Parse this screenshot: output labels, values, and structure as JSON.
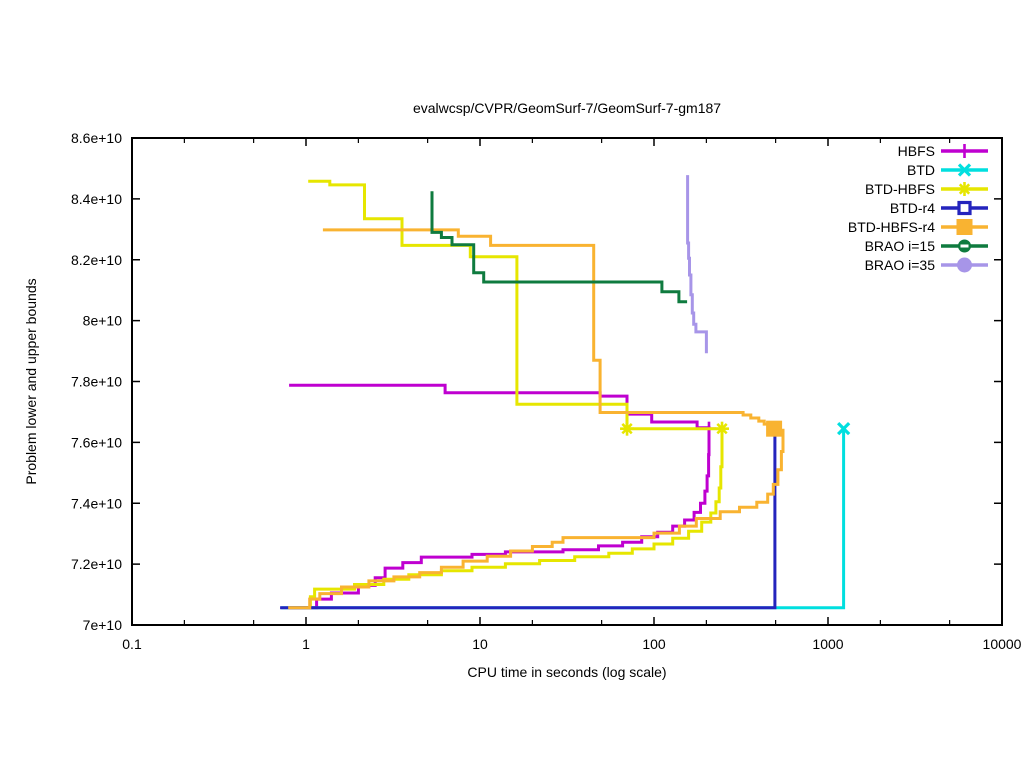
{
  "chart_data": {
    "type": "line",
    "title": "evalwcsp/CVPR/GeomSurf-7/GeomSurf-7-gm187",
    "xlabel": "CPU time in seconds (log scale)",
    "ylabel": "Problem lower and upper bounds",
    "x_scale": "log",
    "x_range": [
      0.1,
      10000
    ],
    "y_range": [
      7.0,
      8.6
    ],
    "value_unit": "1e+10",
    "grid": false,
    "x_tick_values": [
      0.1,
      1,
      10,
      100,
      1000,
      10000
    ],
    "x_tick_labels": [
      "0.1",
      "1",
      "10",
      "100",
      "1000",
      "10000"
    ],
    "x_minor_tick_values": [
      0.2,
      0.5,
      2,
      5,
      20,
      50,
      200,
      500,
      2000,
      5000
    ],
    "y_tick_values": [
      7.0,
      7.2,
      7.4,
      7.6,
      7.8,
      8.0,
      8.2,
      8.4,
      8.6
    ],
    "y_tick_labels": [
      "7e+10",
      "7.2e+10",
      "7.4e+10",
      "7.6e+10",
      "7.8e+10",
      "8e+10",
      "8.2e+10",
      "8.4e+10",
      "8.6e+10"
    ],
    "legend": {
      "position": "top-right-inside"
    },
    "series": [
      {
        "name": "HBFS",
        "color": "#bf00d0",
        "marker": "plus",
        "upper": [
          [
            0.8,
            7.788
          ],
          [
            6.3,
            7.788
          ],
          [
            6.3,
            7.763
          ],
          [
            49,
            7.763
          ],
          [
            49,
            7.752
          ],
          [
            70,
            7.752
          ],
          [
            70,
            7.693
          ],
          [
            97,
            7.693
          ],
          [
            97,
            7.667
          ],
          [
            177,
            7.667
          ],
          [
            177,
            7.648
          ],
          [
            207,
            7.648
          ],
          [
            207,
            7.645
          ]
        ],
        "lower": [
          [
            0.8,
            7.057
          ],
          [
            1.15,
            7.057
          ],
          [
            1.15,
            7.085
          ],
          [
            1.4,
            7.085
          ],
          [
            1.4,
            7.105
          ],
          [
            2.0,
            7.105
          ],
          [
            2.0,
            7.13
          ],
          [
            2.5,
            7.13
          ],
          [
            2.5,
            7.155
          ],
          [
            2.85,
            7.155
          ],
          [
            2.85,
            7.187
          ],
          [
            3.6,
            7.187
          ],
          [
            3.6,
            7.205
          ],
          [
            4.6,
            7.205
          ],
          [
            4.6,
            7.223
          ],
          [
            9.0,
            7.223
          ],
          [
            9.0,
            7.232
          ],
          [
            14,
            7.232
          ],
          [
            14,
            7.24
          ],
          [
            30,
            7.24
          ],
          [
            30,
            7.247
          ],
          [
            48,
            7.247
          ],
          [
            48,
            7.26
          ],
          [
            66,
            7.26
          ],
          [
            66,
            7.272
          ],
          [
            85,
            7.272
          ],
          [
            85,
            7.29
          ],
          [
            105,
            7.29
          ],
          [
            105,
            7.305
          ],
          [
            128,
            7.305
          ],
          [
            128,
            7.325
          ],
          [
            150,
            7.325
          ],
          [
            150,
            7.345
          ],
          [
            170,
            7.345
          ],
          [
            170,
            7.37
          ],
          [
            185,
            7.37
          ],
          [
            185,
            7.4
          ],
          [
            196,
            7.4
          ],
          [
            196,
            7.44
          ],
          [
            202,
            7.44
          ],
          [
            202,
            7.49
          ],
          [
            206,
            7.49
          ],
          [
            206,
            7.56
          ],
          [
            207,
            7.56
          ],
          [
            207,
            7.645
          ]
        ],
        "marker_points": [
          [
            207,
            7.645
          ]
        ]
      },
      {
        "name": "BTD",
        "color": "#00dfdf",
        "marker": "cross",
        "upper": [],
        "lower": [
          [
            0.72,
            7.057
          ],
          [
            1230,
            7.057
          ],
          [
            1230,
            7.645
          ]
        ],
        "marker_points": [
          [
            1230,
            7.645
          ]
        ]
      },
      {
        "name": "BTD-HBFS",
        "color": "#e6e600",
        "marker": "asterisk",
        "upper": [
          [
            1.03,
            8.458
          ],
          [
            1.37,
            8.458
          ],
          [
            1.37,
            8.446
          ],
          [
            2.17,
            8.446
          ],
          [
            2.17,
            8.335
          ],
          [
            3.56,
            8.335
          ],
          [
            3.56,
            8.247
          ],
          [
            8.8,
            8.247
          ],
          [
            8.8,
            8.21
          ],
          [
            16.3,
            8.21
          ],
          [
            16.3,
            7.725
          ],
          [
            70,
            7.725
          ],
          [
            70,
            7.645
          ],
          [
            246,
            7.645
          ]
        ],
        "lower": [
          [
            1.0,
            7.057
          ],
          [
            1.06,
            7.057
          ],
          [
            1.06,
            7.093
          ],
          [
            1.12,
            7.093
          ],
          [
            1.12,
            7.118
          ],
          [
            1.9,
            7.118
          ],
          [
            1.9,
            7.133
          ],
          [
            2.8,
            7.133
          ],
          [
            2.8,
            7.15
          ],
          [
            3.9,
            7.15
          ],
          [
            3.9,
            7.165
          ],
          [
            6.0,
            7.165
          ],
          [
            6.0,
            7.178
          ],
          [
            9.0,
            7.178
          ],
          [
            9.0,
            7.19
          ],
          [
            14,
            7.19
          ],
          [
            14,
            7.201
          ],
          [
            22,
            7.201
          ],
          [
            22,
            7.212
          ],
          [
            35,
            7.212
          ],
          [
            35,
            7.224
          ],
          [
            55,
            7.224
          ],
          [
            55,
            7.236
          ],
          [
            75,
            7.236
          ],
          [
            75,
            7.25
          ],
          [
            100,
            7.25
          ],
          [
            100,
            7.266
          ],
          [
            128,
            7.266
          ],
          [
            128,
            7.285
          ],
          [
            158,
            7.285
          ],
          [
            158,
            7.308
          ],
          [
            188,
            7.308
          ],
          [
            188,
            7.338
          ],
          [
            212,
            7.338
          ],
          [
            212,
            7.368
          ],
          [
            227,
            7.368
          ],
          [
            227,
            7.405
          ],
          [
            237,
            7.405
          ],
          [
            237,
            7.45
          ],
          [
            242,
            7.45
          ],
          [
            242,
            7.52
          ],
          [
            245,
            7.52
          ],
          [
            246,
            7.52
          ],
          [
            246,
            7.645
          ]
        ],
        "marker_points": [
          [
            70,
            7.645
          ],
          [
            246,
            7.645
          ]
        ]
      },
      {
        "name": "BTD-r4",
        "color": "#2424bd",
        "marker": "open-square",
        "upper": [],
        "lower": [
          [
            0.71,
            7.057
          ],
          [
            495,
            7.057
          ],
          [
            495,
            7.645
          ]
        ],
        "marker_points": [
          [
            495,
            7.645
          ]
        ]
      },
      {
        "name": "BTD-HBFS-r4",
        "color": "#f9b331",
        "marker": "filled-square",
        "upper": [
          [
            1.25,
            8.298
          ],
          [
            7.5,
            8.298
          ],
          [
            7.5,
            8.277
          ],
          [
            11.5,
            8.277
          ],
          [
            11.5,
            8.247
          ],
          [
            45,
            8.247
          ],
          [
            45,
            7.87
          ],
          [
            49,
            7.87
          ],
          [
            49,
            7.698
          ],
          [
            325,
            7.698
          ],
          [
            325,
            7.69
          ],
          [
            360,
            7.69
          ],
          [
            360,
            7.68
          ],
          [
            400,
            7.68
          ],
          [
            400,
            7.67
          ],
          [
            430,
            7.67
          ],
          [
            430,
            7.66
          ],
          [
            460,
            7.66
          ],
          [
            460,
            7.651
          ],
          [
            490,
            7.651
          ],
          [
            490,
            7.645
          ]
        ],
        "lower": [
          [
            0.79,
            7.057
          ],
          [
            1.05,
            7.057
          ],
          [
            1.05,
            7.085
          ],
          [
            1.2,
            7.085
          ],
          [
            1.2,
            7.103
          ],
          [
            1.6,
            7.103
          ],
          [
            1.6,
            7.125
          ],
          [
            2.3,
            7.125
          ],
          [
            2.3,
            7.145
          ],
          [
            3.2,
            7.145
          ],
          [
            3.2,
            7.158
          ],
          [
            4.5,
            7.158
          ],
          [
            4.5,
            7.172
          ],
          [
            6.0,
            7.172
          ],
          [
            6.0,
            7.19
          ],
          [
            8.0,
            7.19
          ],
          [
            8.0,
            7.21
          ],
          [
            11,
            7.21
          ],
          [
            11,
            7.226
          ],
          [
            15,
            7.226
          ],
          [
            15,
            7.243
          ],
          [
            20,
            7.243
          ],
          [
            20,
            7.258
          ],
          [
            26,
            7.258
          ],
          [
            26,
            7.272
          ],
          [
            30,
            7.272
          ],
          [
            30,
            7.287
          ],
          [
            100,
            7.287
          ],
          [
            100,
            7.302
          ],
          [
            140,
            7.302
          ],
          [
            140,
            7.325
          ],
          [
            175,
            7.325
          ],
          [
            175,
            7.35
          ],
          [
            240,
            7.35
          ],
          [
            240,
            7.372
          ],
          [
            310,
            7.372
          ],
          [
            310,
            7.387
          ],
          [
            390,
            7.387
          ],
          [
            390,
            7.403
          ],
          [
            450,
            7.403
          ],
          [
            450,
            7.43
          ],
          [
            485,
            7.43
          ],
          [
            485,
            7.462
          ],
          [
            515,
            7.462
          ],
          [
            515,
            7.51
          ],
          [
            540,
            7.51
          ],
          [
            540,
            7.57
          ],
          [
            551,
            7.57
          ],
          [
            551,
            7.645
          ]
        ],
        "marker_points": [
          [
            490,
            7.645
          ]
        ]
      },
      {
        "name": "BRAO i=15",
        "color": "#0f7b3f",
        "marker": "circle-dash",
        "upper": [
          [
            5.3,
            8.425
          ],
          [
            5.3,
            8.29
          ],
          [
            6.0,
            8.29
          ],
          [
            6.0,
            8.273
          ],
          [
            6.9,
            8.273
          ],
          [
            6.9,
            8.249
          ],
          [
            9.2,
            8.249
          ],
          [
            9.2,
            8.157
          ],
          [
            10.5,
            8.157
          ],
          [
            10.5,
            8.127
          ],
          [
            111,
            8.127
          ],
          [
            111,
            8.095
          ],
          [
            139,
            8.095
          ],
          [
            139,
            8.062
          ],
          [
            155,
            8.062
          ]
        ],
        "lower": [],
        "marker_points": []
      },
      {
        "name": "BRAO i=35",
        "color": "#a795e8",
        "marker": "filled-circle",
        "upper": [
          [
            156,
            8.478
          ],
          [
            156,
            8.255
          ],
          [
            158,
            8.255
          ],
          [
            158,
            8.205
          ],
          [
            160,
            8.205
          ],
          [
            160,
            8.15
          ],
          [
            163,
            8.15
          ],
          [
            163,
            8.085
          ],
          [
            166,
            8.085
          ],
          [
            166,
            8.025
          ],
          [
            169,
            8.025
          ],
          [
            169,
            7.988
          ],
          [
            174,
            7.988
          ],
          [
            174,
            7.963
          ],
          [
            200,
            7.963
          ],
          [
            200,
            7.893
          ]
        ],
        "lower": [],
        "marker_points": []
      }
    ]
  }
}
